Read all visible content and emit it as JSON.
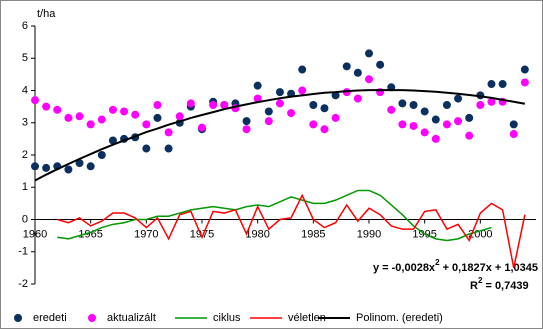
{
  "chart_data": {
    "type": "line",
    "y_label": "t/ha",
    "x": [
      1960,
      1961,
      1962,
      1963,
      1964,
      1965,
      1966,
      1967,
      1968,
      1969,
      1970,
      1971,
      1972,
      1973,
      1974,
      1975,
      1976,
      1977,
      1978,
      1979,
      1980,
      1981,
      1982,
      1983,
      1984,
      1985,
      1986,
      1987,
      1988,
      1989,
      1990,
      1991,
      1992,
      1993,
      1994,
      1995,
      1996,
      1997,
      1998,
      1999,
      2000,
      2001,
      2002,
      2003,
      2004
    ],
    "xlim": [
      1960,
      2005
    ],
    "xticks": [
      1960,
      1965,
      1970,
      1975,
      1980,
      1985,
      1990,
      1995,
      2000
    ],
    "ylim": [
      -2,
      6
    ],
    "yticks": [
      -2,
      -1,
      0,
      1,
      2,
      3,
      4,
      5,
      6
    ],
    "legend": "bottom",
    "series": [
      {
        "name": "eredeti",
        "color": "#0b2f5e",
        "style": "marker",
        "values": [
          1.65,
          1.6,
          1.65,
          1.55,
          1.75,
          1.65,
          2.0,
          2.45,
          2.5,
          2.55,
          2.2,
          3.15,
          2.2,
          3.0,
          3.5,
          2.8,
          3.65,
          3.55,
          3.6,
          3.05,
          4.15,
          3.35,
          3.95,
          3.9,
          4.65,
          3.55,
          3.45,
          3.85,
          4.75,
          4.55,
          5.15,
          4.8,
          4.1,
          3.6,
          3.55,
          3.35,
          3.1,
          3.55,
          3.75,
          3.15,
          3.85,
          4.2,
          4.2,
          2.95,
          4.65
        ]
      },
      {
        "name": "aktualizált",
        "color": "#ff00ff",
        "style": "marker",
        "values": [
          3.7,
          3.5,
          3.4,
          3.15,
          3.2,
          2.95,
          3.1,
          3.4,
          3.35,
          3.25,
          2.95,
          3.55,
          2.7,
          3.2,
          3.6,
          2.85,
          3.55,
          3.55,
          3.45,
          2.8,
          3.75,
          3.05,
          3.6,
          3.3,
          4.0,
          2.95,
          2.8,
          3.15,
          3.95,
          3.75,
          4.35,
          3.95,
          3.4,
          2.95,
          2.9,
          2.7,
          2.5,
          2.95,
          3.05,
          2.6,
          3.55,
          3.65,
          3.65,
          2.65,
          4.25
        ]
      },
      {
        "name": "ciklus",
        "color": "#009900",
        "style": "line",
        "values": [
          null,
          null,
          -0.55,
          -0.6,
          -0.5,
          -0.4,
          -0.25,
          -0.15,
          -0.1,
          0.0,
          0.0,
          0.1,
          0.1,
          0.2,
          0.3,
          0.35,
          0.4,
          0.35,
          0.3,
          0.4,
          0.45,
          0.4,
          0.55,
          0.7,
          0.6,
          0.5,
          0.5,
          0.6,
          0.75,
          0.9,
          0.9,
          0.75,
          0.45,
          0.15,
          -0.2,
          -0.45,
          -0.6,
          -0.65,
          -0.6,
          -0.45,
          -0.35,
          -0.25,
          null,
          null,
          null
        ]
      },
      {
        "name": "véletlen",
        "color": "#ff0000",
        "style": "line",
        "values": [
          null,
          null,
          0.0,
          -0.1,
          0.05,
          -0.2,
          -0.05,
          0.2,
          0.2,
          0.05,
          -0.25,
          0.05,
          -0.6,
          0.15,
          0.25,
          -0.55,
          0.25,
          0.2,
          0.3,
          -0.45,
          0.4,
          -0.3,
          0.0,
          0.05,
          0.75,
          0.0,
          -0.25,
          -0.1,
          0.45,
          -0.05,
          0.35,
          0.15,
          -0.2,
          -0.3,
          -0.3,
          0.25,
          0.3,
          -0.3,
          -0.15,
          -0.65,
          0.2,
          0.5,
          0.3,
          -1.5,
          0.15
        ]
      },
      {
        "name": "Polinom. (eredeti)",
        "color": "#000000",
        "style": "line",
        "width": 2,
        "values": [
          1.21,
          1.39,
          1.56,
          1.72,
          1.88,
          2.03,
          2.18,
          2.32,
          2.45,
          2.58,
          2.71,
          2.82,
          2.94,
          3.04,
          3.15,
          3.24,
          3.33,
          3.42,
          3.5,
          3.57,
          3.64,
          3.7,
          3.76,
          3.81,
          3.85,
          3.89,
          3.93,
          3.95,
          3.98,
          4.0,
          4.01,
          4.01,
          4.01,
          4.01,
          4.0,
          3.98,
          3.96,
          3.93,
          3.9,
          3.86,
          3.82,
          3.77,
          3.71,
          3.65,
          3.59
        ]
      }
    ],
    "equation": {
      "text": "y = -0,0028x",
      "sup": "2",
      "rest": " + 0,1827x + 1,0345"
    },
    "r2": {
      "text": "R",
      "sup": "2",
      "rest": " = 0,7439"
    }
  }
}
